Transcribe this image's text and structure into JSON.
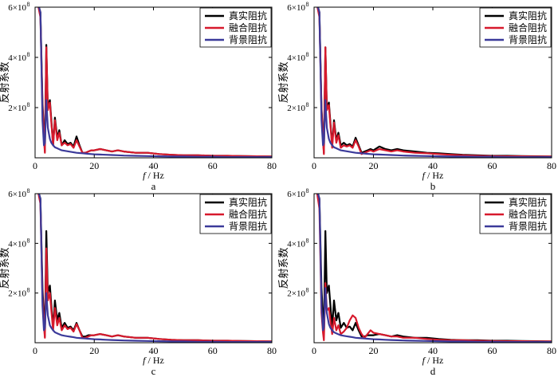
{
  "chart_data": {
    "type": "line",
    "x_label_var": "f",
    "x_label_unit": " / Hz",
    "y_label": "反射系数",
    "x_ticks": [
      0,
      20,
      40,
      60,
      80
    ],
    "xlim": [
      0,
      80
    ],
    "ylim": [
      0,
      600000000
    ],
    "y_ticks": [
      {
        "value": 200000000,
        "mantissa": "2×10",
        "exp": "8"
      },
      {
        "value": 400000000,
        "mantissa": "4×10",
        "exp": "8"
      },
      {
        "value": 600000000,
        "mantissa": "6×10",
        "exp": "8"
      }
    ],
    "legend_position": "top-right",
    "series_styles": [
      {
        "name": "真实阻抗",
        "color": "#000000"
      },
      {
        "name": "融合阻抗",
        "color": "#d7192c"
      },
      {
        "name": "背景阻抗",
        "color": "#3b3a9a"
      }
    ],
    "panels": [
      {
        "label": "a",
        "x": [
          1.8,
          2.5,
          3,
          3.3,
          3.8,
          4.3,
          5,
          5.5,
          6.1,
          6.7,
          7.5,
          8.2,
          9,
          10,
          11,
          12,
          13,
          14,
          15,
          16,
          17,
          18,
          19,
          20,
          22,
          24,
          26,
          28,
          30,
          34,
          38,
          42,
          46,
          50,
          55,
          60,
          65,
          70,
          75,
          80
        ],
        "series": [
          {
            "name": "真实阻抗",
            "values": [
              5.8,
              2.2,
              1.0,
              0.25,
              4.5,
              2.0,
              2.3,
              1.5,
              0.5,
              1.6,
              0.8,
              1.1,
              0.5,
              0.7,
              0.55,
              0.6,
              0.45,
              0.85,
              0.5,
              0.2,
              0.2,
              0.25,
              0.3,
              0.3,
              0.35,
              0.3,
              0.25,
              0.3,
              0.25,
              0.2,
              0.2,
              0.15,
              0.12,
              0.1,
              0.1,
              0.08,
              0.08,
              0.07,
              0.06,
              0.05
            ]
          },
          {
            "name": "融合阻抗",
            "values": [
              5.6,
              2.0,
              0.8,
              0.2,
              4.4,
              1.9,
              2.2,
              1.4,
              0.5,
              1.5,
              0.7,
              1.0,
              0.5,
              0.6,
              0.5,
              0.55,
              0.4,
              0.7,
              0.45,
              0.2,
              0.2,
              0.25,
              0.3,
              0.3,
              0.35,
              0.3,
              0.25,
              0.3,
              0.25,
              0.2,
              0.2,
              0.15,
              0.12,
              0.1,
              0.1,
              0.08,
              0.08,
              0.07,
              0.06,
              0.05
            ]
          },
          {
            "name": "背景阻抗",
            "values": [
              5.8,
              1.5,
              0.5,
              0.6,
              2.3,
              1.2,
              0.75,
              0.6,
              0.5,
              0.42,
              0.38,
              0.34,
              0.3,
              0.28,
              0.26,
              0.24,
              0.22,
              0.2,
              0.19,
              0.18,
              0.17,
              0.16,
              0.15,
              0.14,
              0.13,
              0.12,
              0.11,
              0.1,
              0.09,
              0.08,
              0.07,
              0.06,
              0.05,
              0.05,
              0.04,
              0.04,
              0.03,
              0.03,
              0.03,
              0.03
            ]
          }
        ]
      },
      {
        "label": "b",
        "x": [
          1.8,
          2.5,
          3,
          3.3,
          3.8,
          4.3,
          5,
          5.5,
          6.1,
          6.7,
          7.5,
          8.2,
          9,
          10,
          11,
          12,
          13,
          14,
          15,
          16,
          17,
          18,
          19,
          20,
          22,
          24,
          26,
          28,
          30,
          34,
          38,
          42,
          46,
          50,
          55,
          60,
          65,
          70,
          75,
          80
        ],
        "series": [
          {
            "name": "真实阻抗",
            "values": [
              5.8,
              2.0,
              0.8,
              0.2,
              4.4,
              2.0,
              2.2,
              1.4,
              0.5,
              1.5,
              0.7,
              1.0,
              0.5,
              0.6,
              0.5,
              0.55,
              0.45,
              0.8,
              0.5,
              0.2,
              0.25,
              0.3,
              0.35,
              0.3,
              0.45,
              0.35,
              0.3,
              0.35,
              0.3,
              0.25,
              0.2,
              0.18,
              0.15,
              0.12,
              0.1,
              0.08,
              0.08,
              0.07,
              0.06,
              0.05
            ]
          },
          {
            "name": "融合阻抗",
            "values": [
              5.6,
              1.9,
              0.7,
              0.15,
              4.4,
              1.9,
              2.1,
              1.3,
              0.4,
              1.4,
              0.6,
              0.9,
              0.4,
              0.5,
              0.45,
              0.5,
              0.4,
              0.7,
              0.45,
              0.15,
              0.2,
              0.25,
              0.3,
              0.25,
              0.35,
              0.3,
              0.25,
              0.3,
              0.25,
              0.2,
              0.18,
              0.15,
              0.12,
              0.1,
              0.08,
              0.07,
              0.06,
              0.06,
              0.05,
              0.05
            ]
          },
          {
            "name": "背景阻抗",
            "values": [
              5.8,
              1.5,
              0.5,
              0.6,
              2.3,
              1.2,
              0.75,
              0.6,
              0.5,
              0.42,
              0.38,
              0.34,
              0.3,
              0.28,
              0.26,
              0.24,
              0.22,
              0.2,
              0.19,
              0.18,
              0.17,
              0.16,
              0.15,
              0.14,
              0.13,
              0.12,
              0.11,
              0.1,
              0.09,
              0.08,
              0.07,
              0.06,
              0.05,
              0.05,
              0.04,
              0.04,
              0.03,
              0.03,
              0.03,
              0.03
            ]
          }
        ]
      },
      {
        "label": "c",
        "x": [
          1.8,
          2.5,
          3,
          3.3,
          3.8,
          4.3,
          5,
          5.5,
          6.1,
          6.7,
          7.5,
          8.2,
          9,
          10,
          11,
          12,
          13,
          14,
          15,
          16,
          17,
          18,
          19,
          20,
          22,
          24,
          26,
          28,
          30,
          34,
          38,
          42,
          46,
          50,
          55,
          60,
          65,
          70,
          75,
          80
        ],
        "series": [
          {
            "name": "真实阻抗",
            "values": [
              5.8,
              2.2,
              1.0,
              0.25,
              4.5,
              2.0,
              2.3,
              1.5,
              0.6,
              1.7,
              0.9,
              1.2,
              0.6,
              0.8,
              0.6,
              0.65,
              0.5,
              0.8,
              0.5,
              0.25,
              0.25,
              0.3,
              0.3,
              0.3,
              0.35,
              0.3,
              0.25,
              0.3,
              0.25,
              0.2,
              0.2,
              0.15,
              0.12,
              0.1,
              0.1,
              0.08,
              0.08,
              0.07,
              0.06,
              0.05
            ]
          },
          {
            "name": "融合阻抗",
            "values": [
              5.6,
              1.8,
              0.7,
              0.2,
              3.8,
              1.7,
              2.0,
              1.3,
              0.5,
              1.4,
              0.7,
              1.0,
              0.5,
              0.7,
              0.55,
              0.6,
              0.45,
              0.75,
              0.5,
              0.2,
              0.2,
              0.25,
              0.3,
              0.3,
              0.35,
              0.3,
              0.25,
              0.3,
              0.25,
              0.2,
              0.2,
              0.15,
              0.12,
              0.1,
              0.1,
              0.08,
              0.08,
              0.07,
              0.06,
              0.05
            ]
          },
          {
            "name": "背景阻抗",
            "values": [
              5.8,
              1.5,
              0.5,
              0.6,
              2.0,
              1.1,
              0.7,
              0.6,
              0.5,
              0.42,
              0.38,
              0.34,
              0.3,
              0.28,
              0.26,
              0.24,
              0.22,
              0.2,
              0.19,
              0.18,
              0.17,
              0.16,
              0.15,
              0.14,
              0.13,
              0.12,
              0.11,
              0.1,
              0.09,
              0.08,
              0.07,
              0.06,
              0.05,
              0.05,
              0.04,
              0.04,
              0.03,
              0.03,
              0.03,
              0.03
            ]
          }
        ]
      },
      {
        "label": "d",
        "x": [
          1.8,
          2.5,
          3,
          3.3,
          3.8,
          4.3,
          5,
          5.5,
          6.1,
          6.7,
          7.5,
          8.2,
          9,
          10,
          11,
          12,
          13,
          14,
          15,
          16,
          17,
          18,
          19,
          20,
          22,
          24,
          26,
          28,
          30,
          34,
          38,
          42,
          46,
          50,
          55,
          60,
          65,
          70,
          75,
          80
        ],
        "series": [
          {
            "name": "真实阻抗",
            "values": [
              5.8,
              2.2,
              1.0,
              0.25,
              4.5,
              2.0,
              2.3,
              1.5,
              0.6,
              1.7,
              0.9,
              1.2,
              0.6,
              0.8,
              0.6,
              0.65,
              0.5,
              0.8,
              0.5,
              0.25,
              0.25,
              0.3,
              0.3,
              0.3,
              0.35,
              0.3,
              0.25,
              0.3,
              0.25,
              0.2,
              0.2,
              0.15,
              0.12,
              0.1,
              0.1,
              0.08,
              0.08,
              0.07,
              0.06,
              0.05
            ]
          },
          {
            "name": "融合阻抗",
            "values": [
              5.4,
              1.2,
              0.4,
              0.1,
              2.4,
              1.3,
              1.4,
              0.9,
              0.35,
              1.0,
              0.5,
              0.7,
              0.35,
              0.45,
              0.6,
              0.9,
              1.1,
              1.0,
              0.6,
              0.35,
              0.2,
              0.35,
              0.5,
              0.4,
              0.35,
              0.3,
              0.25,
              0.25,
              0.2,
              0.2,
              0.15,
              0.12,
              0.1,
              0.1,
              0.08,
              0.07,
              0.06,
              0.06,
              0.05,
              0.05
            ]
          },
          {
            "name": "背景阻抗",
            "values": [
              5.8,
              1.5,
              0.5,
              0.6,
              2.2,
              1.2,
              0.75,
              0.6,
              0.5,
              0.42,
              0.38,
              0.34,
              0.3,
              0.28,
              0.26,
              0.24,
              0.22,
              0.2,
              0.19,
              0.18,
              0.17,
              0.16,
              0.15,
              0.14,
              0.13,
              0.12,
              0.11,
              0.1,
              0.09,
              0.08,
              0.07,
              0.06,
              0.05,
              0.05,
              0.04,
              0.04,
              0.03,
              0.03,
              0.03,
              0.03
            ]
          }
        ]
      }
    ],
    "value_unit_note": "series values in units of 1e8"
  }
}
